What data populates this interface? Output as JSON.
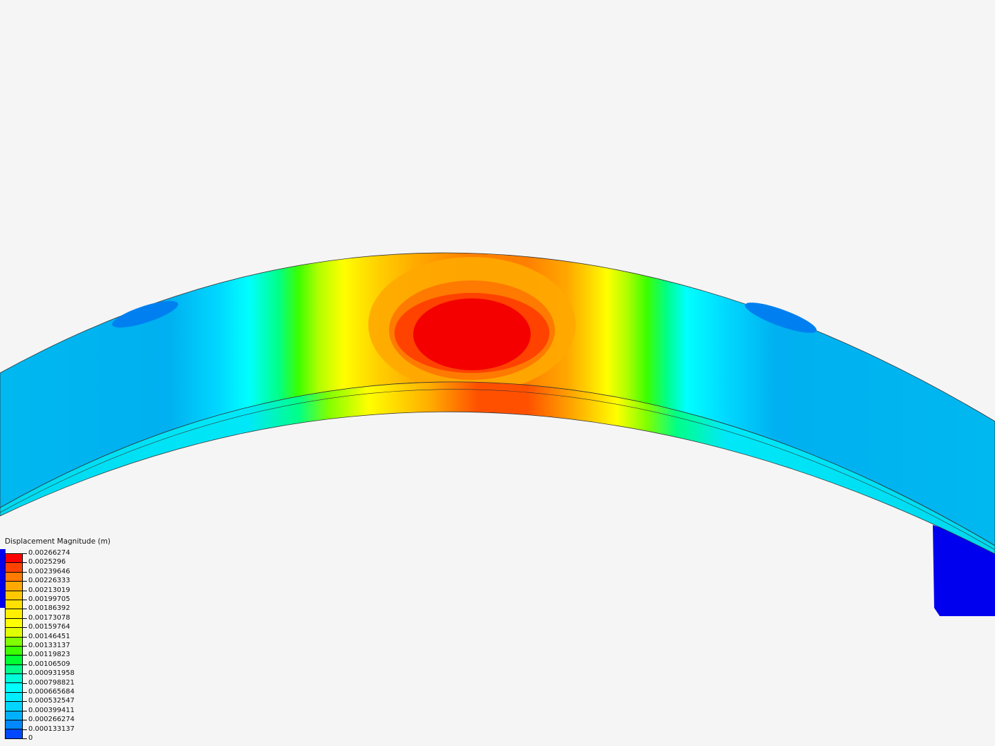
{
  "legend": {
    "title": "Displacement Magnitude (m)",
    "labels": [
      "0.00266274",
      "0.0025296",
      "0.00239646",
      "0.00226333",
      "0.00213019",
      "0.00199705",
      "0.00186392",
      "0.00173078",
      "0.00159764",
      "0.00146451",
      "0.00133137",
      "0.00119823",
      "0.00106509",
      "0.000931958",
      "0.000798821",
      "0.000665684",
      "0.000532547",
      "0.000399411",
      "0.000266274",
      "0.000133137",
      "0"
    ],
    "colors": [
      "#ff0000",
      "#ff4200",
      "#ff7a00",
      "#ffa800",
      "#ffc800",
      "#ffe000",
      "#fff000",
      "#ffff00",
      "#e0ff00",
      "#80ff00",
      "#3cff00",
      "#00ff30",
      "#00ff88",
      "#00ffd8",
      "#00ffff",
      "#00eeff",
      "#00d4ff",
      "#00b0ff",
      "#0088ff",
      "#0048ff",
      "#0000ff"
    ]
  }
}
